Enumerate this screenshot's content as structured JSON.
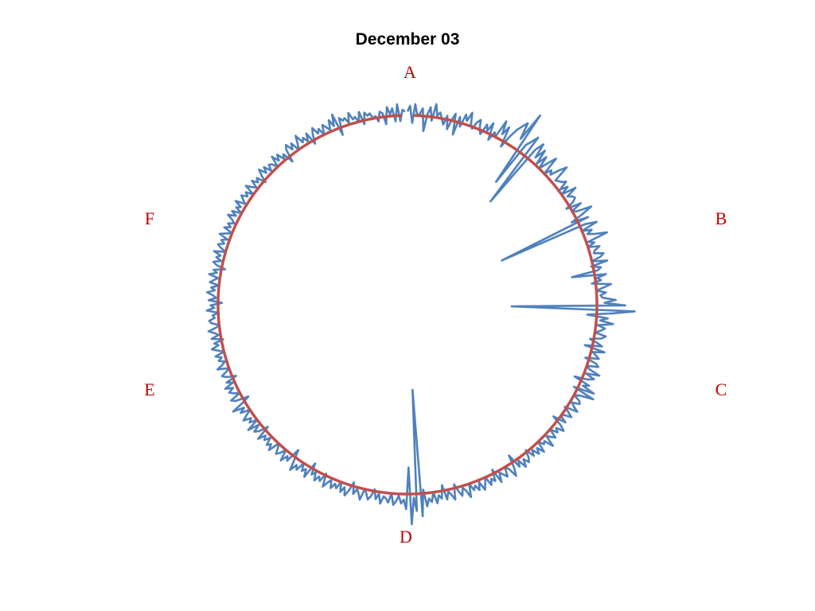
{
  "chart_data": {
    "type": "line",
    "subtype": "radar",
    "title": "December 03",
    "sector_labels": [
      "A",
      "B",
      "C",
      "D",
      "E",
      "F"
    ],
    "grid": false,
    "legend": "none",
    "baseline_value": 1.0,
    "radial_range": [
      0,
      1.3
    ],
    "colors": {
      "series": "#4f81bd",
      "baseline": "#c0504d",
      "labels": "#c00000",
      "title": "#000000"
    },
    "series": [
      {
        "values": [
          1.02,
          1.05,
          0.96,
          1.06,
          1.0,
          1.01,
          1.04,
          0.92,
          1.01,
          1.05,
          0.98,
          1.07,
          1.01,
          1.03,
          1.0,
          0.97,
          1.02,
          0.95,
          1.0,
          1.04,
          0.93,
          1.03,
          0.98,
          1.05,
          1.02,
          1.07,
          1.01,
          0.99,
          1.03,
          1.05,
          1.0,
          0.98,
          1.04,
          1.01,
          1.06,
          0.97,
          1.02,
          1.0,
          1.1,
          1.03,
          1.08,
          0.97,
          1.04,
          1.09,
          1.12,
          1.15,
          1.06,
          1.22,
          0.8,
          1.05,
          1.08,
          1.12,
          0.7,
          1.06,
          1.11,
          1.03,
          1.09,
          1.01,
          1.07,
          1.0,
          1.05,
          1.1,
          1.0,
          1.04,
          1.02,
          1.07,
          1.11,
          1.02,
          1.03,
          1.04,
          1.06,
          1.01,
          1.05,
          1.0,
          1.08,
          1.02,
          1.04,
          1.05,
          1.03,
          0.98,
          1.06,
          1.0,
          1.02,
          1.1,
          1.04,
          0.97,
          1.06,
          0.55,
          1.03,
          1.09,
          1.0,
          1.05,
          1.02,
          1.06,
          1.12,
          1.01,
          1.04,
          1.0,
          1.06,
          1.03,
          1.02,
          1.07,
          1.05,
          1.0,
          1.08,
          0.99,
          1.04,
          1.02,
          0.88,
          1.06,
          1.01,
          1.03,
          0.98,
          1.08,
          1.04,
          1.0,
          1.05,
          1.02,
          1.03,
          1.1,
          1.04,
          1.15,
          0.55,
          1.2,
          1.08,
          0.95,
          1.06,
          1.02,
          1.09,
          1.01,
          1.05,
          1.03,
          1.0,
          1.06,
          1.04,
          0.98,
          1.02,
          1.05,
          0.96,
          1.07,
          1.01,
          1.03,
          1.05,
          0.98,
          1.04,
          1.06,
          1.0,
          1.02,
          1.08,
          1.01,
          1.06,
          1.03,
          0.96,
          1.05,
          1.02,
          1.09,
          0.98,
          1.1,
          1.03,
          1.0,
          1.04,
          1.05,
          1.01,
          1.03,
          1.06,
          0.99,
          1.02,
          1.05,
          1.01,
          1.0,
          1.04,
          0.97,
          1.03,
          1.06,
          1.02,
          1.04,
          1.0,
          1.05,
          1.03,
          1.01,
          1.07,
          1.02,
          1.03,
          1.0,
          1.06,
          1.02,
          1.05,
          1.01,
          1.04,
          0.99,
          1.03,
          1.05,
          1.02,
          1.06,
          1.01,
          1.04,
          0.96,
          1.03,
          1.07,
          1.02,
          1.0,
          1.05,
          1.03,
          1.01,
          1.06,
          0.98,
          1.04,
          1.02,
          1.05,
          1.0,
          1.03,
          1.06,
          1.01,
          1.05,
          1.02,
          1.04,
          1.0,
          1.07,
          1.03,
          1.01,
          1.05,
          1.02,
          0.98,
          1.06,
          1.03,
          1.01,
          1.05,
          0.97,
          1.04,
          1.02,
          1.06,
          1.0,
          1.05,
          1.03,
          1.07,
          0.98,
          1.12,
          0.45,
          1.09,
          1.02,
          1.16,
          0.86,
          1.08,
          1.03,
          1.05,
          1.01,
          1.04,
          1.06,
          1.0,
          1.05,
          1.03,
          1.02,
          1.06,
          1.01,
          1.04,
          0.99,
          1.03,
          1.05,
          1.02,
          1.0,
          1.06,
          1.03,
          1.01,
          1.04,
          0.98,
          1.03,
          1.06,
          1.02,
          1.05,
          1.0,
          1.04,
          1.02,
          1.05,
          1.01,
          1.03,
          1.06,
          0.99,
          1.04,
          1.02,
          1.05,
          1.01,
          1.03,
          0.97,
          1.06,
          1.02,
          1.04,
          1.0,
          1.05,
          1.03,
          1.07,
          1.01,
          0.96,
          1.04,
          1.02,
          1.06,
          1.0,
          1.03,
          1.05,
          1.02,
          1.0,
          1.06,
          1.03,
          1.05,
          1.01,
          1.04,
          1.02,
          1.06,
          0.98,
          1.03,
          1.05,
          1.01,
          1.07,
          1.0,
          1.04,
          1.02,
          1.06,
          1.03,
          1.0,
          1.05,
          1.02,
          1.08,
          1.01,
          0.97,
          1.04,
          1.06,
          1.0,
          1.03,
          1.05,
          1.02,
          1.06,
          1.01,
          1.04,
          0.98,
          1.03,
          1.05,
          1.02,
          1.0,
          1.06,
          1.03,
          1.01,
          1.04,
          1.02,
          1.05,
          1.0,
          1.03,
          1.06,
          1.02,
          1.04,
          0.99,
          1.05,
          1.01,
          1.03,
          1.06,
          1.02,
          1.0,
          1.04,
          1.05,
          1.02,
          1.03,
          1.0,
          1.06,
          1.02,
          1.04,
          0.98,
          1.05,
          1.01,
          1.03,
          1.06,
          1.02,
          1.04,
          1.0,
          1.05,
          1.03,
          1.01,
          1.06,
          1.02,
          1.04,
          0.98,
          1.03,
          1.05,
          1.01,
          1.04,
          1.02,
          1.06,
          1.0,
          1.03,
          1.05,
          1.02,
          1.04,
          1.01,
          1.06,
          1.03,
          1.0,
          1.05,
          1.02,
          1.04,
          1.01,
          1.03,
          1.06,
          1.02,
          1.05,
          1.0,
          1.04,
          1.02,
          1.06,
          1.01,
          1.03,
          1.05,
          1.02,
          1.04,
          1.0,
          1.06,
          1.03,
          1.01,
          1.05,
          1.02,
          1.04,
          0.99,
          1.03,
          1.06,
          1.02,
          1.05,
          1.01,
          1.04,
          1.03,
          1.0,
          1.06,
          1.02,
          1.05,
          1.01,
          1.03,
          0.97,
          1.04,
          1.06,
          1.02,
          1.05,
          1.0,
          1.03,
          1.07,
          1.02,
          1.04,
          1.01,
          1.05,
          0.98,
          1.03,
          1.06,
          1.02,
          1.04,
          1.0,
          1.05,
          1.03,
          1.01,
          1.06,
          1.02,
          1.08,
          0.96,
          1.05,
          1.03,
          1.04,
          1.01,
          1.06,
          1.02,
          1.03,
          1.0,
          1.05,
          0.98,
          1.04,
          1.02,
          1.03,
          1.0,
          1.01,
          0.98,
          1.03,
          1.02,
          0.96,
          1.05,
          1.01,
          1.04,
          0.97,
          1.06,
          0.97,
          1.03,
          1.02
        ]
      }
    ]
  }
}
